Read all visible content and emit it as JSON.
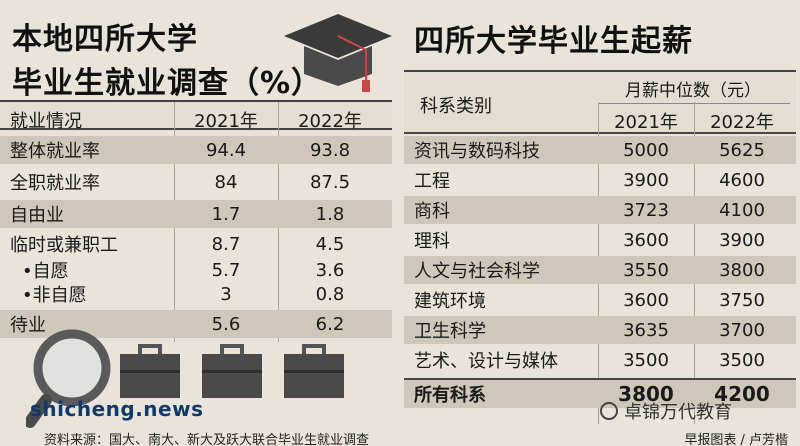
{
  "left": {
    "title_line1": "本地四所大学",
    "title_line2": "毕业生就业调查（%）",
    "headers": [
      "就业情况",
      "2021年",
      "2022年"
    ],
    "rows": [
      {
        "label": "整体就业率",
        "v2021": "94.4",
        "v2022": "93.8"
      },
      {
        "label": "全职就业率",
        "v2021": "84",
        "v2022": "87.5"
      },
      {
        "label": "自由业",
        "v2021": "1.7",
        "v2022": "1.8"
      },
      {
        "label": "临时或兼职工",
        "v2021": "8.7",
        "v2022": "4.5"
      },
      {
        "label": "•自愿",
        "v2021": "5.7",
        "v2022": "3.6"
      },
      {
        "label": "•非自愿",
        "v2021": "3",
        "v2022": "0.8"
      },
      {
        "label": "待业",
        "v2021": "5.6",
        "v2022": "6.2"
      }
    ]
  },
  "right": {
    "title": "四所大学毕业生起薪",
    "header_col1": "科系类别",
    "header_group": "月薪中位数（元）",
    "headers_years": [
      "2021年",
      "2022年"
    ],
    "rows": [
      {
        "label": "资讯与数码科技",
        "v2021": "5000",
        "v2022": "5625"
      },
      {
        "label": "工程",
        "v2021": "3900",
        "v2022": "4600"
      },
      {
        "label": "商科",
        "v2021": "3723",
        "v2022": "4100"
      },
      {
        "label": "理科",
        "v2021": "3600",
        "v2022": "3900"
      },
      {
        "label": "人文与社会科学",
        "v2021": "3550",
        "v2022": "3800"
      },
      {
        "label": "建筑环境",
        "v2021": "3600",
        "v2022": "3750"
      },
      {
        "label": "卫生科学",
        "v2021": "3635",
        "v2022": "3700"
      },
      {
        "label": "艺术、设计与媒体",
        "v2021": "3500",
        "v2022": "3500"
      },
      {
        "label": "所有科系",
        "v2021": "3800",
        "v2022": "4200"
      }
    ]
  },
  "footer": {
    "source": "资料来源：国大、南大、新大及跃大联合毕业生就业调查",
    "credit": "早报图表 / 卢芳楷"
  },
  "watermarks": {
    "left": "shicheng.news",
    "right": "卓锦万代教育"
  }
}
